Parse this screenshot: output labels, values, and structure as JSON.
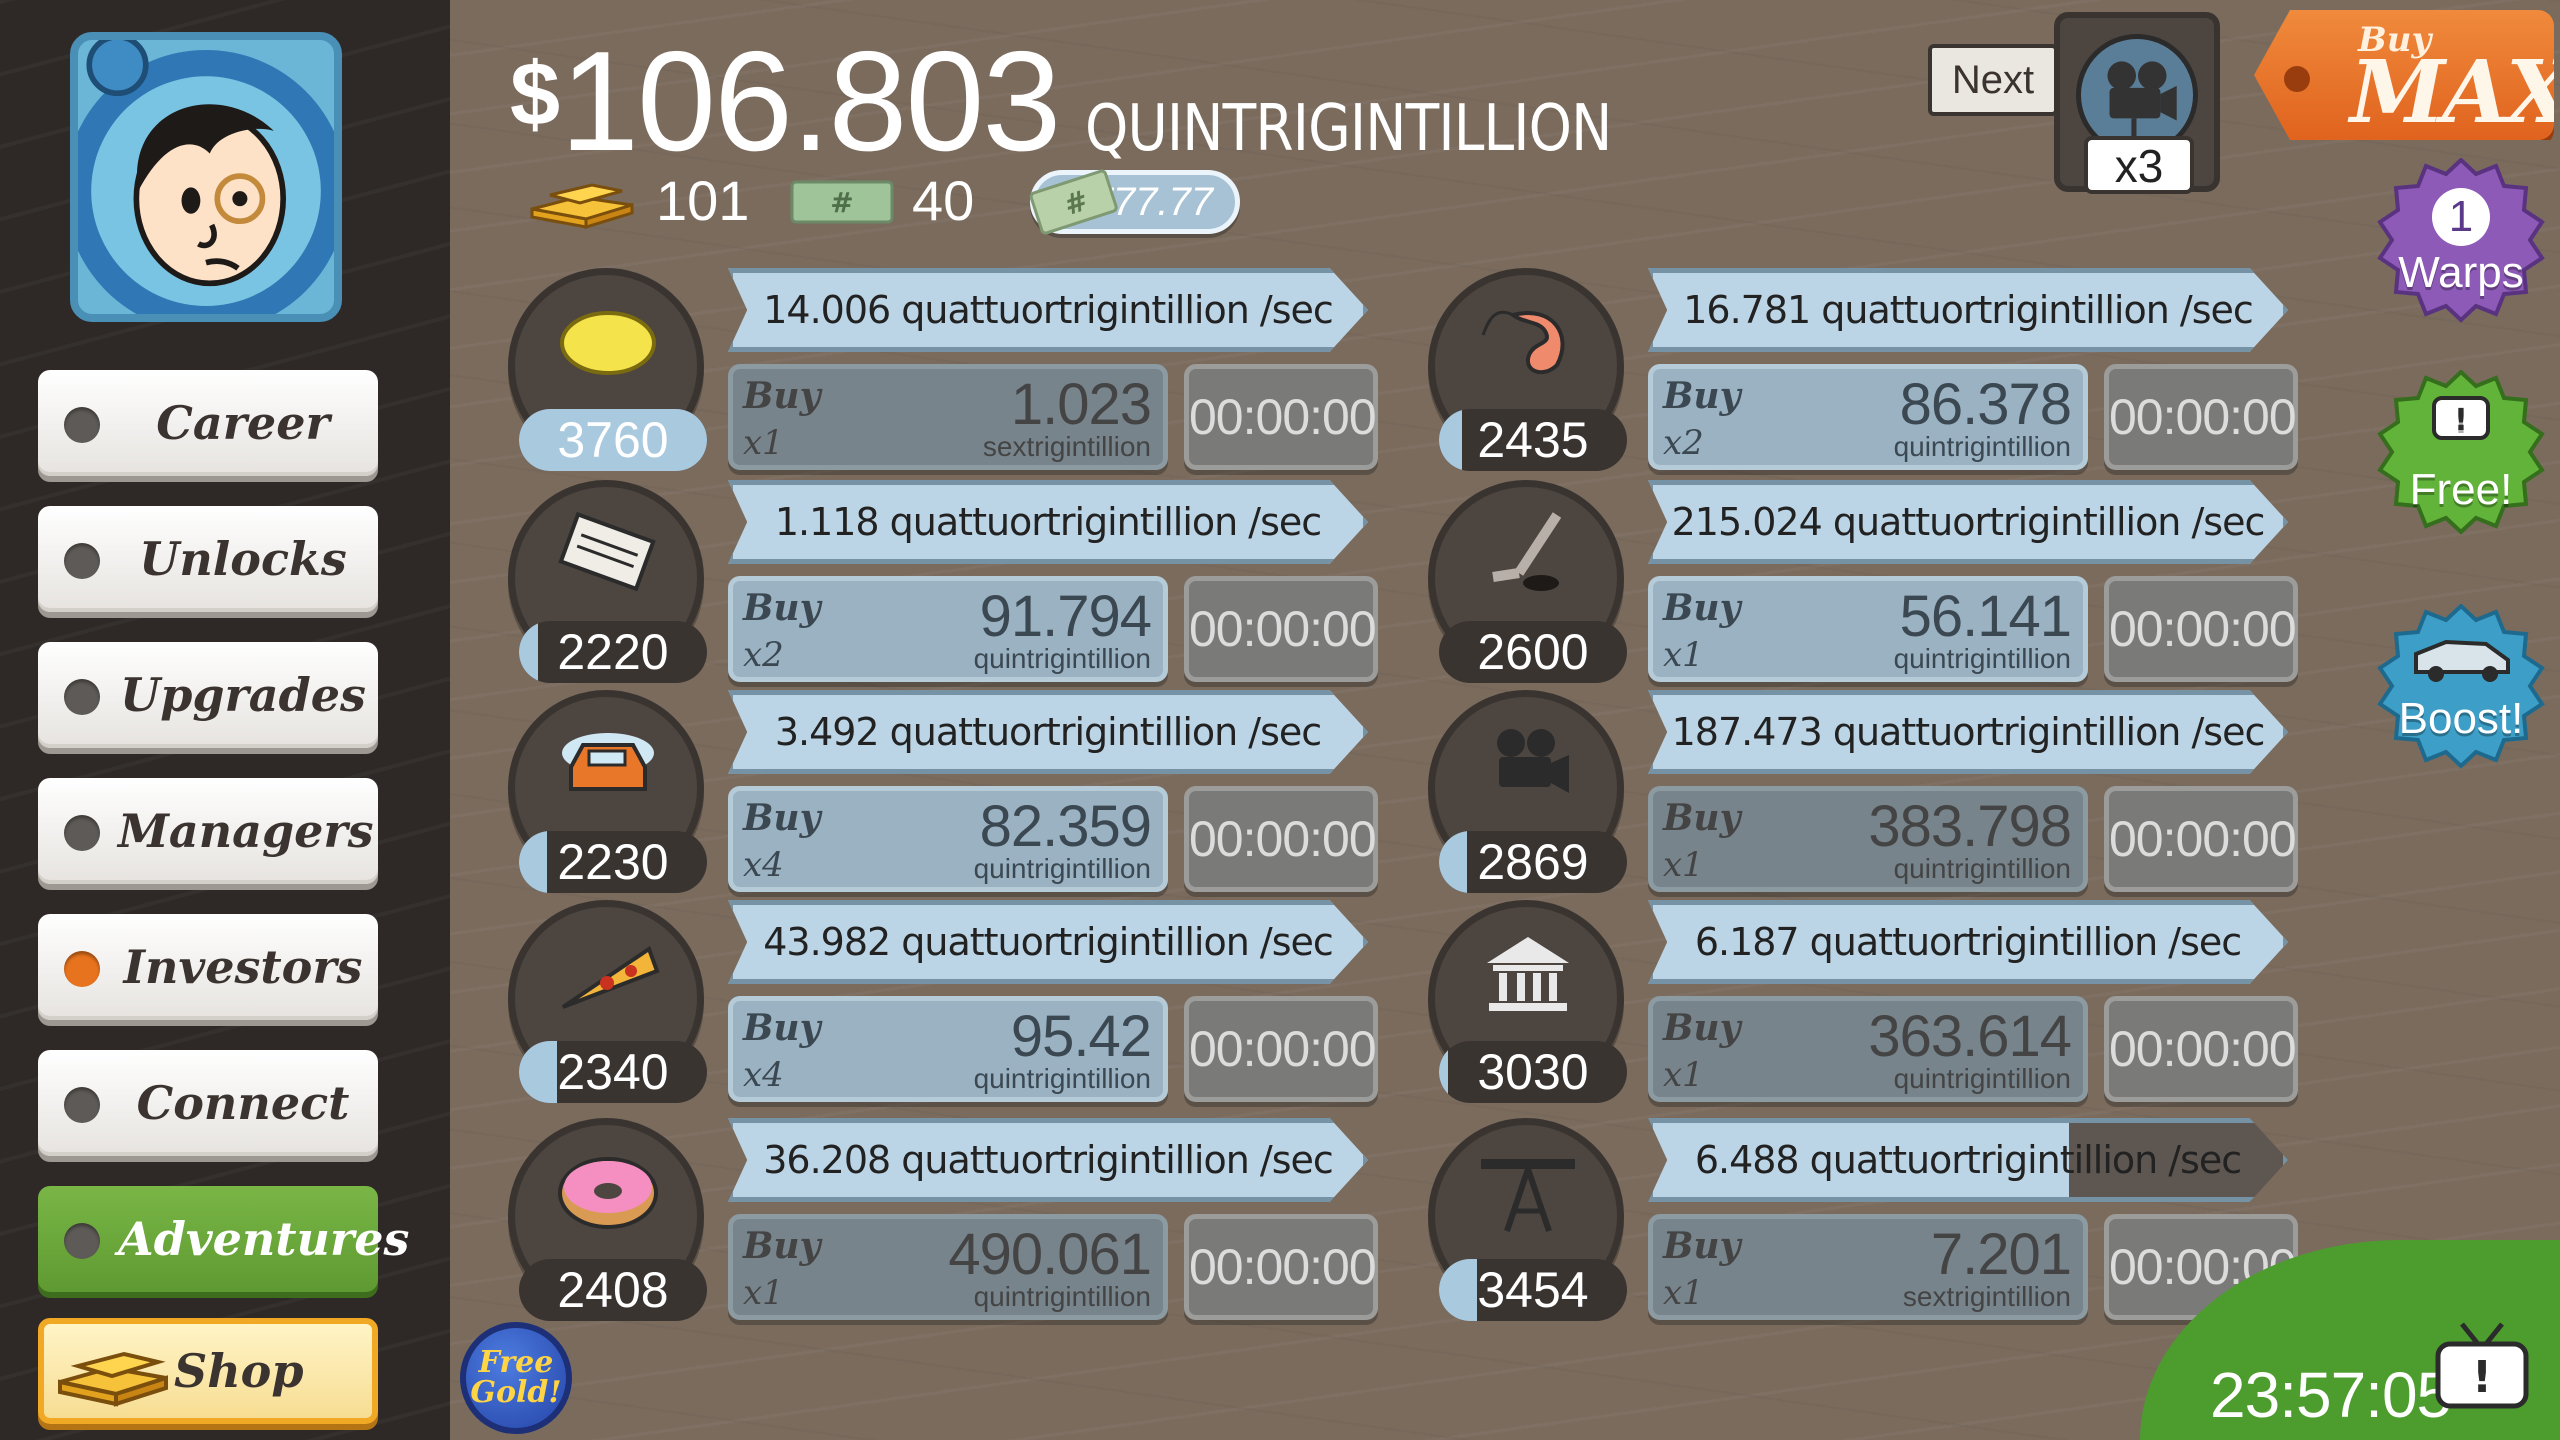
{
  "header": {
    "currency_symbol": "$",
    "money_amount": "106.803",
    "money_unit": "QUINTRIGINTILLION",
    "gold_count": "101",
    "megabucks_count": "40",
    "multiplier": "x777.77"
  },
  "sidebar": {
    "items": [
      {
        "label": "Career",
        "active": false
      },
      {
        "label": "Unlocks",
        "active": false
      },
      {
        "label": "Upgrades",
        "active": false
      },
      {
        "label": "Managers",
        "active": false
      },
      {
        "label": "Investors",
        "active": true
      },
      {
        "label": "Connect",
        "active": false
      },
      {
        "label": "Adventures",
        "active": false
      },
      {
        "label": "Shop",
        "active": false
      }
    ],
    "free_gold_label": "Free Gold!"
  },
  "businesses": [
    {
      "icon": "lemon-icon",
      "owned": "3760",
      "progress": 1.0,
      "rate": "14.006 quattuortrigintillion /sec",
      "rate_progress": 1.0,
      "buy_label": "Buy",
      "buy_qty": "x1",
      "cost": "1.023",
      "cost_unit": "sextrigintillion",
      "affordable": false,
      "timer": "00:00:00"
    },
    {
      "icon": "newspaper-icon",
      "owned": "2220",
      "progress": 0.1,
      "rate": "1.118 quattuortrigintillion /sec",
      "rate_progress": 1.0,
      "buy_label": "Buy",
      "buy_qty": "x2",
      "cost": "91.794",
      "cost_unit": "quintrigintillion",
      "affordable": true,
      "timer": "00:00:00"
    },
    {
      "icon": "car-wash-icon",
      "owned": "2230",
      "progress": 0.15,
      "rate": "3.492 quattuortrigintillion /sec",
      "rate_progress": 1.0,
      "buy_label": "Buy",
      "buy_qty": "x4",
      "cost": "82.359",
      "cost_unit": "quintrigintillion",
      "affordable": true,
      "timer": "00:00:00"
    },
    {
      "icon": "pizza-icon",
      "owned": "2340",
      "progress": 0.2,
      "rate": "43.982 quattuortrigintillion /sec",
      "rate_progress": 1.0,
      "buy_label": "Buy",
      "buy_qty": "x4",
      "cost": "95.42",
      "cost_unit": "quintrigintillion",
      "affordable": true,
      "timer": "00:00:00"
    },
    {
      "icon": "donut-icon",
      "owned": "2408",
      "progress": 0.0,
      "rate": "36.208 quattuortrigintillion /sec",
      "rate_progress": 1.0,
      "buy_label": "Buy",
      "buy_qty": "x1",
      "cost": "490.061",
      "cost_unit": "quintrigintillion",
      "affordable": false,
      "timer": "00:00:00"
    },
    {
      "icon": "shrimp-icon",
      "owned": "2435",
      "progress": 0.12,
      "rate": "16.781 quattuortrigintillion /sec",
      "rate_progress": 1.0,
      "buy_label": "Buy",
      "buy_qty": "x2",
      "cost": "86.378",
      "cost_unit": "quintrigintillion",
      "affordable": true,
      "timer": "00:00:00"
    },
    {
      "icon": "hockey-icon",
      "owned": "2600",
      "progress": 0.0,
      "rate": "215.024 quattuortrigintillion /sec",
      "rate_progress": 1.0,
      "buy_label": "Buy",
      "buy_qty": "x1",
      "cost": "56.141",
      "cost_unit": "quintrigintillion",
      "affordable": true,
      "timer": "00:00:00"
    },
    {
      "icon": "movie-camera-icon",
      "owned": "2869",
      "progress": 0.15,
      "rate": "187.473 quattuortrigintillion /sec",
      "rate_progress": 1.0,
      "buy_label": "Buy",
      "buy_qty": "x1",
      "cost": "383.798",
      "cost_unit": "quintrigintillion",
      "affordable": false,
      "timer": "00:00:00"
    },
    {
      "icon": "bank-icon",
      "owned": "3030",
      "progress": 0.05,
      "rate": "6.187 quattuortrigintillion /sec",
      "rate_progress": 1.0,
      "buy_label": "Buy",
      "buy_qty": "x1",
      "cost": "363.614",
      "cost_unit": "quintrigintillion",
      "affordable": false,
      "timer": "00:00:00"
    },
    {
      "icon": "oil-rig-icon",
      "owned": "3454",
      "progress": 0.2,
      "rate": "6.488 quattuortrigintillion /sec",
      "rate_progress": 0.66,
      "buy_label": "Buy",
      "buy_qty": "x1",
      "cost": "7.201",
      "cost_unit": "sextrigintillion",
      "affordable": false,
      "timer": "00:00:00"
    }
  ],
  "right_panel": {
    "next_label": "Next",
    "unlock_multiplier": "x3",
    "buy_label": "Buy",
    "max_label": "MAX",
    "warps_count": "1",
    "warps_label": "Warps",
    "free_label": "Free!",
    "boost_label": "Boost!",
    "countdown": "23:57:05"
  }
}
